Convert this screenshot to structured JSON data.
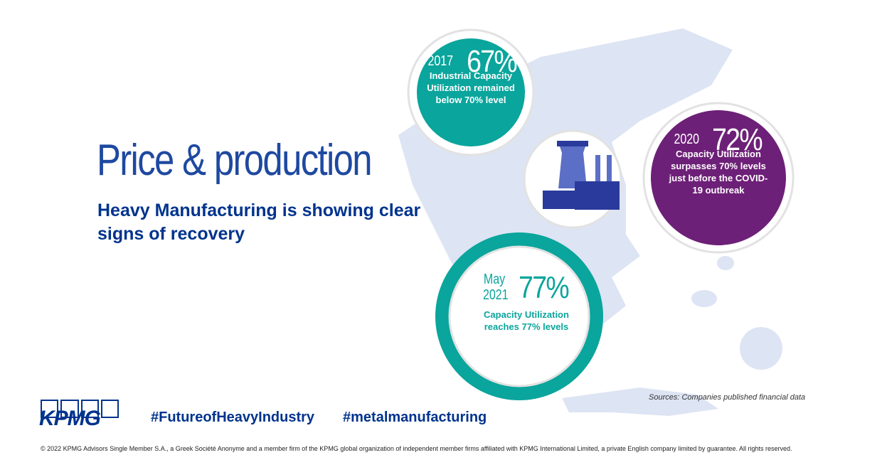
{
  "header": {
    "title": "Price & production",
    "subtitle": "Heavy Manufacturing is showing clear signs of recovery"
  },
  "stats": [
    {
      "period": "2017",
      "value": "67%",
      "description": "Industrial Capacity Utilization remained below 70% level"
    },
    {
      "period": "2020",
      "value": "72%",
      "description": "Capacity Utilization surpasses 70% levels just before the COVID-19 outbreak"
    },
    {
      "period": "May 2021",
      "value": "77%",
      "description": "Capacity Utilization reaches 77% levels"
    }
  ],
  "source": "Sources: Companies published financial data",
  "footer": {
    "logo": "KPMG",
    "hashtags": [
      "#FutureofHeavyIndustry",
      "#metalmanufacturing"
    ],
    "copyright": "© 2022 KPMG Advisors Single Member S.A., a Greek Société Anonyme and a member firm of the KPMG global organization of independent member firms affiliated with KPMG International Limited, a private English company limited by guarantee. All rights reserved."
  }
}
